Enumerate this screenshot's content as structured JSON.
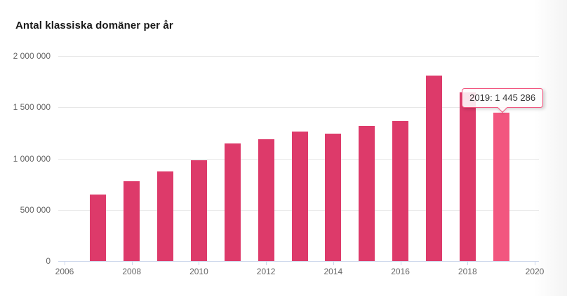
{
  "chart": {
    "title": "Antal klassiska domäner per år",
    "tooltip": {
      "text": "2019: 1 445 286",
      "target_year": 2019
    },
    "colors": {
      "bar": "#dd3a6a",
      "bar_highlight": "#f2567f",
      "gridline": "#e6e6e6",
      "axis_line": "#ccd6eb",
      "axis_label": "#666666",
      "title": "#1a1a1a",
      "tooltip_border": "#f2567f",
      "tooltip_text": "#333333"
    }
  },
  "chart_data": {
    "type": "bar",
    "title": "Antal klassiska domäner per år",
    "categories": [
      2007,
      2008,
      2009,
      2010,
      2011,
      2012,
      2013,
      2014,
      2015,
      2016,
      2017,
      2018,
      2019
    ],
    "values": [
      650000,
      775000,
      875000,
      985000,
      1145000,
      1185000,
      1260000,
      1245000,
      1315000,
      1365000,
      1810000,
      1645000,
      1445286
    ],
    "highlighted_category": 2019,
    "highlighted_value_exact": 1445286,
    "xlabel": "",
    "ylabel": "",
    "ylim": [
      0,
      2000000
    ],
    "yticks": [
      0,
      500000,
      1000000,
      1500000,
      2000000
    ],
    "ytick_labels": [
      "0",
      "500 000",
      "1 000 000",
      "1 500 000",
      "2 000 000"
    ],
    "xticks": [
      2006,
      2008,
      2010,
      2012,
      2014,
      2016,
      2018,
      2020
    ],
    "xtick_labels": [
      "2006",
      "2008",
      "2010",
      "2012",
      "2014",
      "2016",
      "2018",
      "2020"
    ],
    "grid": true,
    "legend": false,
    "tooltip_label": "2019: 1 445 286"
  }
}
